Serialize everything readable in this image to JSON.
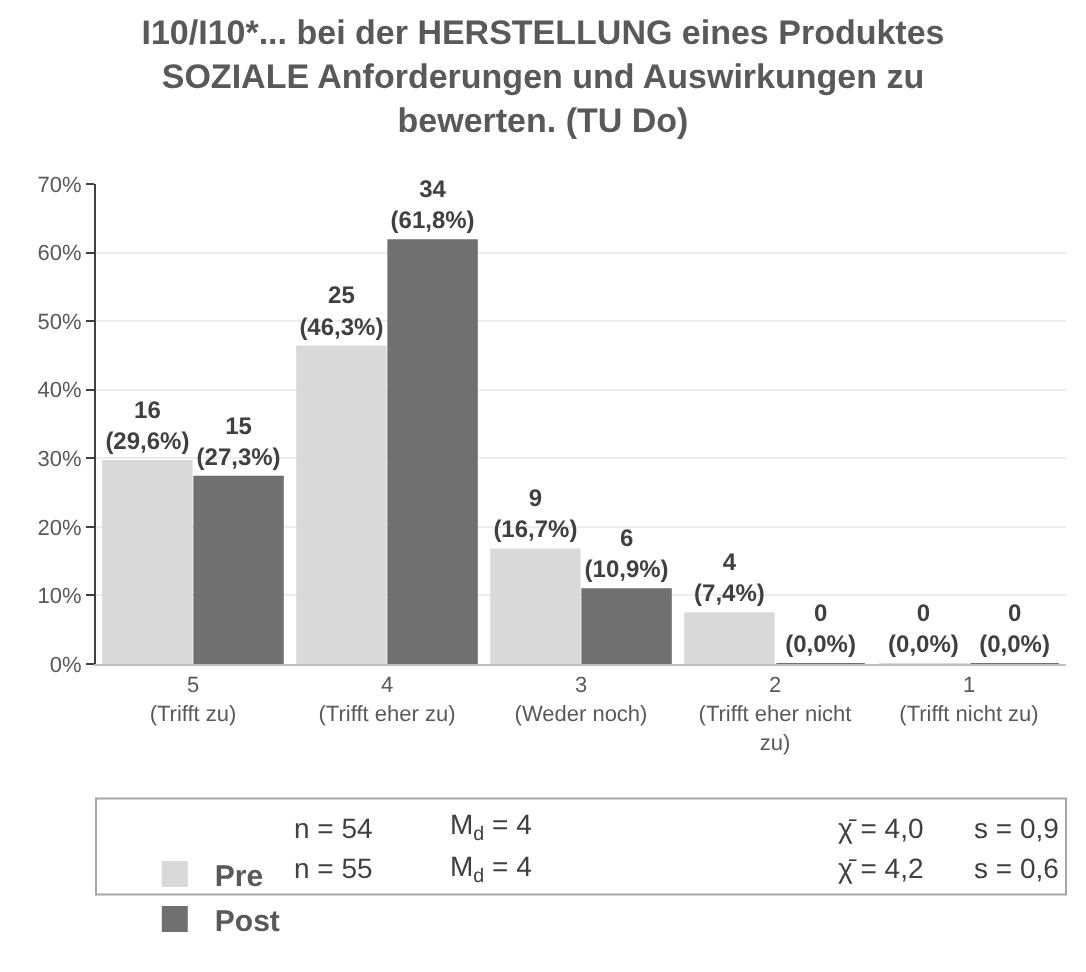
{
  "chart_data": {
    "type": "bar",
    "title": "I10/I10*... bei der HERSTELLUNG eines Produktes\nSOZIALE Anforderungen und Auswirkungen zu\nbewerten. (TU Do)",
    "categories": [
      "5\n(Trifft zu)",
      "4\n(Trifft eher zu)",
      "3\n(Weder noch)",
      "2\n(Trifft eher nicht\nzu)",
      "1\n(Trifft nicht zu)"
    ],
    "series": [
      {
        "name": "Pre",
        "color": "#d9d9d9",
        "values": [
          29.6,
          46.3,
          16.7,
          7.4,
          0
        ],
        "value_labels": [
          "16\n(29,6%)",
          "25\n(46,3%)",
          "9\n(16,7%)",
          "4\n(7,4%)",
          "0\n(0,0%)"
        ]
      },
      {
        "name": "Post",
        "color": "#707070",
        "values": [
          27.3,
          61.8,
          10.9,
          0,
          0
        ],
        "value_labels": [
          "15\n(27,3%)",
          "34\n(61,8%)",
          "6\n(10,9%)",
          "0\n(0,0%)",
          "0\n(0,0%)"
        ]
      }
    ],
    "ylim": [
      0,
      70
    ],
    "yticks": [
      {
        "value": 0,
        "label": "0%"
      },
      {
        "value": 10,
        "label": "10%"
      },
      {
        "value": 20,
        "label": "20%"
      },
      {
        "value": 30,
        "label": "30%"
      },
      {
        "value": 40,
        "label": "40%"
      },
      {
        "value": 50,
        "label": "50%"
      },
      {
        "value": 60,
        "label": "60%"
      },
      {
        "value": 70,
        "label": "70%"
      }
    ],
    "grid": "y",
    "legend": "bottom",
    "annotations": [
      "n = 54",
      "M$_{d}$ = 4",
      "χ̄ = 4,0",
      "s = 0,9",
      "n = 55",
      "M$_{d}$ = 4",
      "χ̄ = 4,2",
      "s = 0,6"
    ]
  }
}
